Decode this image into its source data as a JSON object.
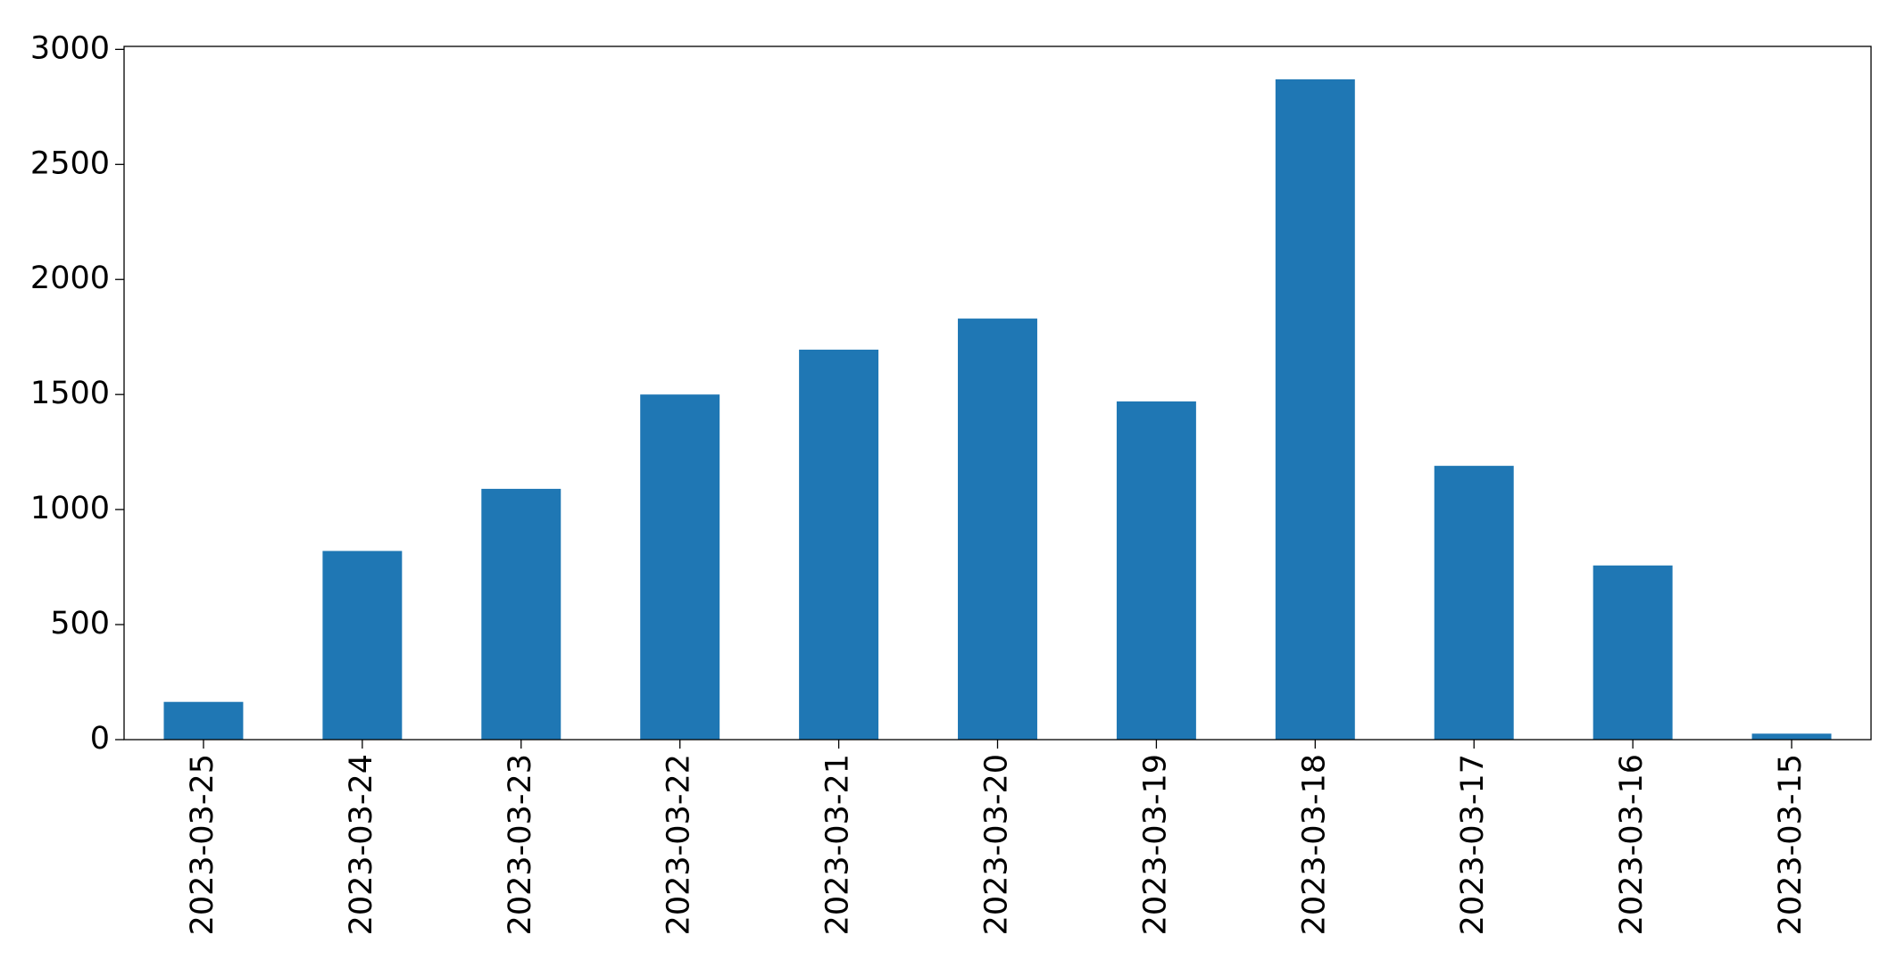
{
  "chart_data": {
    "type": "bar",
    "categories": [
      "2023-03-25",
      "2023-03-24",
      "2023-03-23",
      "2023-03-22",
      "2023-03-21",
      "2023-03-20",
      "2023-03-19",
      "2023-03-18",
      "2023-03-17",
      "2023-03-16",
      "2023-03-15"
    ],
    "values": [
      164,
      820,
      1090,
      1500,
      1695,
      1830,
      1470,
      2870,
      1190,
      757,
      26
    ],
    "color": "#1f77b4",
    "ylim": [
      0,
      3013
    ],
    "yticks": [
      0,
      500,
      1000,
      1500,
      2000,
      2500,
      3000
    ],
    "grid": false
  }
}
